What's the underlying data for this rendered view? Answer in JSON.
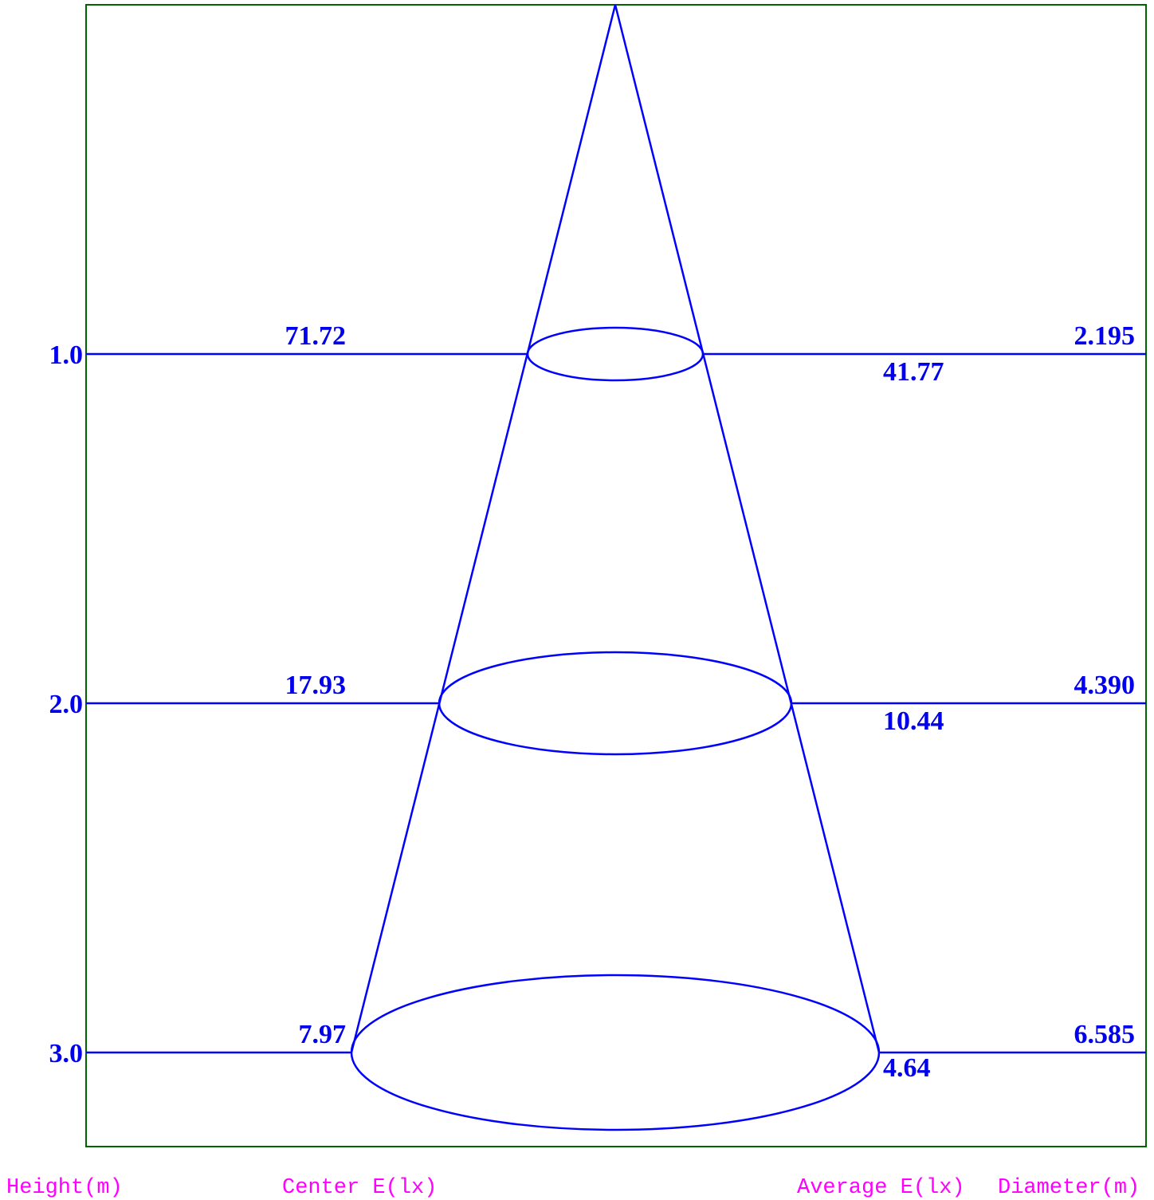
{
  "chart_data": {
    "type": "diagram",
    "axis_title": "Height(m)",
    "columns": {
      "center": "Center E(lx)",
      "average": "Average E(lx)",
      "diameter": "Diameter(m)"
    },
    "rows": [
      {
        "height": "1.0",
        "center_e": "71.72",
        "average_e": "41.77",
        "diameter": "2.195"
      },
      {
        "height": "2.0",
        "center_e": "17.93",
        "average_e": "10.44",
        "diameter": "4.390"
      },
      {
        "height": "3.0",
        "center_e": "7.97",
        "average_e": "4.64",
        "diameter": "6.585"
      }
    ]
  },
  "colors": {
    "frame": "#006400",
    "lines": "#0000ff",
    "values": "#0000ee",
    "labels": "#ff00ff"
  }
}
